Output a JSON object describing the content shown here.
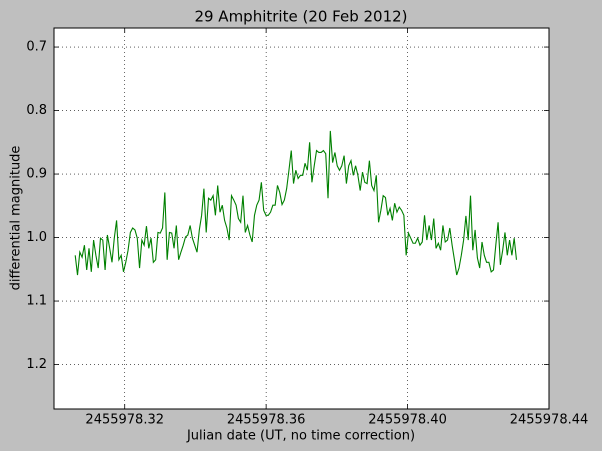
{
  "chart_data": {
    "type": "line",
    "title": "29 Amphitrite (20 Feb 2012)",
    "x_label": "Julian date (UT, no time correction)",
    "y_label": "differential magnitude",
    "xlim": [
      2455978.3,
      2455978.44
    ],
    "xticks": [
      2455978.32,
      2455978.36,
      {
        "value": 2455978.4,
        "label": "2455978.40"
      },
      2455978.44
    ],
    "ylim": [
      0.67,
      1.27
    ],
    "y_inverted": true,
    "yticks": [
      0.7,
      0.8,
      0.9,
      {
        "value": 1,
        "label": "1.0"
      },
      1.1,
      1.2
    ],
    "grid": true,
    "color": "#008000",
    "x": [
      2455978.306,
      2455978.30665,
      2455978.3073,
      2455978.30795,
      2455978.3086,
      2455978.30925,
      2455978.3099,
      2455978.31055,
      2455978.3112,
      2455978.31185,
      2455978.3125,
      2455978.31315,
      2455978.3138,
      2455978.31445,
      2455978.3151,
      2455978.31575,
      2455978.3164,
      2455978.31705,
      2455978.3177,
      2455978.31835,
      2455978.319,
      2455978.31965,
      2455978.3203,
      2455978.32095,
      2455978.3216,
      2455978.32225,
      2455978.3229,
      2455978.32355,
      2455978.3242,
      2455978.32485,
      2455978.3255,
      2455978.32615,
      2455978.3268,
      2455978.32745,
      2455978.3281,
      2455978.32875,
      2455978.3294,
      2455978.33005,
      2455978.3307,
      2455978.33135,
      2455978.332,
      2455978.33265,
      2455978.3333,
      2455978.33395,
      2455978.3346,
      2455978.33525,
      2455978.3359,
      2455978.33655,
      2455978.3372,
      2455978.33785,
      2455978.3385,
      2455978.33915,
      2455978.3398,
      2455978.34045,
      2455978.3411,
      2455978.34175,
      2455978.3424,
      2455978.34305,
      2455978.3437,
      2455978.34435,
      2455978.345,
      2455978.34565,
      2455978.3463,
      2455978.34695,
      2455978.3476,
      2455978.34825,
      2455978.3489,
      2455978.34955,
      2455978.3502,
      2455978.35085,
      2455978.3515,
      2455978.35215,
      2455978.3528,
      2455978.35345,
      2455978.3541,
      2455978.35475,
      2455978.3554,
      2455978.35605,
      2455978.3567,
      2455978.35735,
      2455978.358,
      2455978.35865,
      2455978.3593,
      2455978.35995,
      2455978.3606,
      2455978.36125,
      2455978.3619,
      2455978.36255,
      2455978.3632,
      2455978.36385,
      2455978.3645,
      2455978.36515,
      2455978.3658,
      2455978.36645,
      2455978.3671,
      2455978.36775,
      2455978.3684,
      2455978.36905,
      2455978.3697,
      2455978.37035,
      2455978.371,
      2455978.37165,
      2455978.3723,
      2455978.37295,
      2455978.3736,
      2455978.37425,
      2455978.3749,
      2455978.37555,
      2455978.3762,
      2455978.37685,
      2455978.3775,
      2455978.37815,
      2455978.3788,
      2455978.37945,
      2455978.3801,
      2455978.38075,
      2455978.3814,
      2455978.38205,
      2455978.3827,
      2455978.38335,
      2455978.384,
      2455978.38465,
      2455978.3853,
      2455978.38595,
      2455978.3866,
      2455978.38725,
      2455978.3879,
      2455978.38855,
      2455978.3892,
      2455978.38985,
      2455978.3905,
      2455978.39115,
      2455978.3918,
      2455978.39245,
      2455978.3931,
      2455978.39375,
      2455978.3944,
      2455978.39505,
      2455978.3957,
      2455978.39635,
      2455978.397,
      2455978.39765,
      2455978.3983,
      2455978.39895,
      2455978.3996,
      2455978.40025,
      2455978.4009,
      2455978.40155,
      2455978.4022,
      2455978.40285,
      2455978.4035,
      2455978.40415,
      2455978.4048,
      2455978.40545,
      2455978.4061,
      2455978.40675,
      2455978.4074,
      2455978.40805,
      2455978.4087,
      2455978.40935,
      2455978.41,
      2455978.41065,
      2455978.4113,
      2455978.41195,
      2455978.4126,
      2455978.41325,
      2455978.4139,
      2455978.41455,
      2455978.4152,
      2455978.41585,
      2455978.4165,
      2455978.41715,
      2455978.4178,
      2455978.41845,
      2455978.4191,
      2455978.41975,
      2455978.4204,
      2455978.42105,
      2455978.4217,
      2455978.42235,
      2455978.423,
      2455978.42365,
      2455978.4243,
      2455978.42495,
      2455978.4256,
      2455978.42625,
      2455978.4269,
      2455978.42755,
      2455978.4282,
      2455978.42885,
      2455978.4295,
      2455978.43015,
      2455978.4308
    ],
    "values": [
      1.028,
      1.059,
      1.023,
      1.031,
      1.012,
      1.051,
      1.017,
      1.054,
      1.004,
      1.028,
      1.048,
      1.001,
      1.004,
      1.051,
      0.996,
      1.017,
      1.039,
      1.001,
      0.973,
      1.035,
      1.028,
      1.054,
      1.039,
      1.02,
      0.992,
      0.985,
      0.988,
      1.001,
      1.048,
      1.004,
      1.012,
      0.982,
      1.017,
      1.001,
      1.039,
      1.035,
      0.992,
      0.993,
      0.985,
      0.929,
      1.035,
      0.992,
      0.993,
      1.017,
      0.981,
      1.035,
      1.023,
      1.012,
      0.999,
      0.996,
      0.981,
      1.001,
      1.012,
      1.023,
      0.988,
      0.965,
      0.923,
      0.992,
      0.938,
      0.941,
      0.934,
      0.965,
      0.918,
      0.96,
      0.949,
      0.973,
      0.985,
      1.004,
      0.934,
      0.941,
      0.949,
      0.97,
      0.976,
      0.934,
      0.992,
      0.981,
      0.996,
      1.007,
      0.965,
      0.949,
      0.941,
      0.913,
      0.957,
      0.965,
      0.965,
      0.96,
      0.949,
      0.949,
      0.918,
      0.929,
      0.948,
      0.941,
      0.923,
      0.894,
      0.863,
      0.915,
      0.894,
      0.907,
      0.902,
      0.902,
      0.883,
      0.894,
      0.85,
      0.913,
      0.887,
      0.863,
      0.866,
      0.866,
      0.863,
      0.868,
      0.938,
      0.832,
      0.882,
      0.866,
      0.887,
      0.894,
      0.887,
      0.871,
      0.915,
      0.887,
      0.879,
      0.902,
      0.887,
      0.902,
      0.926,
      0.897,
      0.913,
      0.915,
      0.879,
      0.918,
      0.926,
      0.902,
      0.976,
      0.957,
      0.934,
      0.937,
      0.965,
      0.954,
      0.973,
      0.946,
      0.96,
      0.952,
      0.957,
      0.965,
      1.028,
      0.993,
      1.001,
      1.009,
      1.009,
      1.001,
      1.012,
      1.007,
      0.965,
      1.004,
      0.981,
      1.004,
      0.97,
      1.017,
      1.009,
      1.02,
      0.981,
      1.007,
      1.004,
      0.985,
      1.012,
      1.035,
      1.059,
      1.048,
      1.028,
      1.004,
      0.966,
      1.004,
      0.934,
      1.02,
      0.988,
      1.032,
      1.048,
      1.007,
      1.028,
      1.039,
      1.039,
      1.054,
      1.051,
      1.012,
      0.976,
      1.043,
      1.02,
      0.992,
      1.028,
      1.004,
      1.028,
      1.001,
      1.035
    ]
  }
}
